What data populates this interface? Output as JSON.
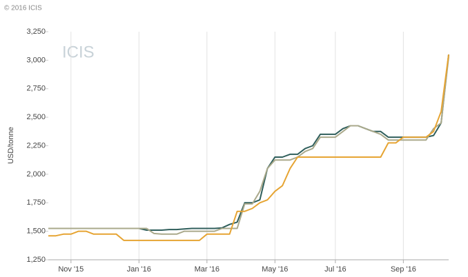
{
  "chart_data": {
    "type": "line",
    "copyright": "© 2016 ICIS",
    "watermark": "ICIS",
    "y_label": "USD/tonne",
    "categories": [
      null,
      null,
      null,
      "Nov '15",
      null,
      null,
      null,
      null,
      null,
      null,
      null,
      null,
      "Jan '16",
      null,
      null,
      null,
      null,
      null,
      null,
      null,
      null,
      "Mar '16",
      null,
      null,
      null,
      null,
      null,
      null,
      null,
      null,
      "May '16",
      null,
      null,
      null,
      null,
      null,
      null,
      null,
      "Jul '16",
      null,
      null,
      null,
      null,
      null,
      null,
      null,
      null,
      "Sep '16",
      null,
      null,
      null,
      null,
      null,
      null
    ],
    "series": [
      {
        "color": "#2f5e5b",
        "values": [
          1525,
          1525,
          1525,
          1525,
          1525,
          1525,
          1525,
          1525,
          1525,
          1525,
          1525,
          1525,
          1525,
          1510,
          1510,
          1510,
          1515,
          1515,
          1520,
          1525,
          1525,
          1525,
          1525,
          1530,
          1560,
          1580,
          1750,
          1750,
          1775,
          2050,
          2150,
          2150,
          2175,
          2175,
          2225,
          2250,
          2350,
          2350,
          2350,
          2400,
          2425,
          2425,
          2400,
          2375,
          2375,
          2325,
          2325,
          2325,
          2325,
          2325,
          2325,
          2340,
          2450,
          3050
        ]
      },
      {
        "color": "#aaa98b",
        "values": [
          1525,
          1525,
          1525,
          1525,
          1525,
          1525,
          1525,
          1525,
          1525,
          1525,
          1525,
          1525,
          1525,
          1525,
          1480,
          1475,
          1475,
          1475,
          1500,
          1500,
          1500,
          1500,
          1500,
          1525,
          1525,
          1525,
          1740,
          1740,
          1850,
          2050,
          2125,
          2125,
          2125,
          2150,
          2200,
          2225,
          2325,
          2325,
          2325,
          2375,
          2425,
          2425,
          2400,
          2375,
          2350,
          2300,
          2300,
          2300,
          2300,
          2300,
          2300,
          2400,
          2450,
          3030
        ]
      },
      {
        "color": "#e6a432",
        "values": [
          1460,
          1460,
          1475,
          1475,
          1500,
          1500,
          1475,
          1475,
          1475,
          1475,
          1420,
          1420,
          1420,
          1420,
          1420,
          1420,
          1420,
          1420,
          1420,
          1420,
          1420,
          1475,
          1475,
          1475,
          1475,
          1675,
          1675,
          1700,
          1750,
          1775,
          1850,
          1900,
          2050,
          2150,
          2150,
          2150,
          2150,
          2150,
          2150,
          2150,
          2150,
          2150,
          2150,
          2150,
          2150,
          2275,
          2275,
          2325,
          2325,
          2325,
          2325,
          2375,
          2550,
          3050
        ]
      }
    ],
    "ylim": [
      1250,
      3250
    ],
    "yticks": [
      {
        "value": 1250,
        "label": "1,250"
      },
      {
        "value": 1500,
        "label": "1,500"
      },
      {
        "value": 1750,
        "label": "1,750"
      },
      {
        "value": 2000,
        "label": "2,000"
      },
      {
        "value": 2250,
        "label": "2,250"
      },
      {
        "value": 2500,
        "label": "2,500"
      },
      {
        "value": 2750,
        "label": "2,750"
      },
      {
        "value": 3000,
        "label": "3,000"
      },
      {
        "value": 3250,
        "label": "3,250"
      }
    ],
    "grid": true
  }
}
